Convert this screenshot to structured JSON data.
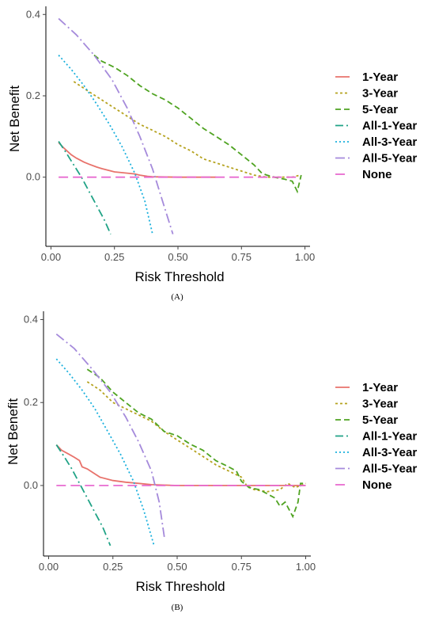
{
  "chart_data": [
    {
      "type": "line",
      "panel_label": "(A)",
      "xlabel": "Risk Threshold",
      "ylabel": "Net Benefit",
      "xlim": [
        -0.02,
        1.02
      ],
      "ylim": [
        -0.17,
        0.42
      ],
      "x_ticks": [
        0.0,
        0.25,
        0.5,
        0.75,
        1.0
      ],
      "x_tick_labels": [
        "0.00",
        "0.25",
        "0.50",
        "0.75",
        "1.00"
      ],
      "y_ticks": [
        0.0,
        0.2,
        0.4
      ],
      "y_tick_labels": [
        "0.0",
        "0.2",
        "0.4"
      ],
      "grid": false,
      "legend_position": "right",
      "series": [
        {
          "name": "1-Year",
          "color": "#E8726B",
          "dash": "solid",
          "points": [
            [
              0.03,
              0.085
            ],
            [
              0.05,
              0.072
            ],
            [
              0.08,
              0.055
            ],
            [
              0.1,
              0.047
            ],
            [
              0.13,
              0.037
            ],
            [
              0.15,
              0.032
            ],
            [
              0.18,
              0.025
            ],
            [
              0.2,
              0.021
            ],
            [
              0.25,
              0.013
            ],
            [
              0.3,
              0.01
            ],
            [
              0.33,
              0.008
            ],
            [
              0.35,
              0.005
            ],
            [
              0.38,
              0.002
            ],
            [
              0.4,
              0.001
            ],
            [
              0.5,
              0.0
            ],
            [
              0.6,
              0.0
            ],
            [
              0.65,
              0.0
            ]
          ]
        },
        {
          "name": "3-Year",
          "color": "#B5A21E",
          "dash": "dot-short",
          "points": [
            [
              0.09,
              0.235
            ],
            [
              0.15,
              0.21
            ],
            [
              0.2,
              0.19
            ],
            [
              0.25,
              0.17
            ],
            [
              0.3,
              0.15
            ],
            [
              0.35,
              0.13
            ],
            [
              0.4,
              0.115
            ],
            [
              0.45,
              0.1
            ],
            [
              0.5,
              0.08
            ],
            [
              0.55,
              0.065
            ],
            [
              0.6,
              0.045
            ],
            [
              0.65,
              0.035
            ],
            [
              0.7,
              0.025
            ],
            [
              0.75,
              0.015
            ],
            [
              0.8,
              0.005
            ],
            [
              0.85,
              0.0
            ],
            [
              0.9,
              0.0
            ],
            [
              0.95,
              0.0
            ],
            [
              0.98,
              0.005
            ]
          ]
        },
        {
          "name": "5-Year",
          "color": "#4FA321",
          "dash": "dash",
          "points": [
            [
              0.17,
              0.3
            ],
            [
              0.2,
              0.285
            ],
            [
              0.25,
              0.27
            ],
            [
              0.3,
              0.25
            ],
            [
              0.35,
              0.225
            ],
            [
              0.4,
              0.205
            ],
            [
              0.45,
              0.19
            ],
            [
              0.5,
              0.17
            ],
            [
              0.55,
              0.145
            ],
            [
              0.6,
              0.12
            ],
            [
              0.65,
              0.1
            ],
            [
              0.7,
              0.08
            ],
            [
              0.75,
              0.055
            ],
            [
              0.8,
              0.03
            ],
            [
              0.83,
              0.01
            ],
            [
              0.85,
              0.005
            ],
            [
              0.88,
              0.0
            ],
            [
              0.92,
              -0.005
            ],
            [
              0.95,
              -0.01
            ],
            [
              0.97,
              -0.035
            ],
            [
              0.985,
              0.005
            ]
          ]
        },
        {
          "name": "All-1-Year",
          "color": "#20A386",
          "dash": "dashdot",
          "points": [
            [
              0.03,
              0.088
            ],
            [
              0.06,
              0.06
            ],
            [
              0.09,
              0.03
            ],
            [
              0.12,
              0.0
            ],
            [
              0.15,
              -0.035
            ],
            [
              0.18,
              -0.07
            ],
            [
              0.21,
              -0.105
            ],
            [
              0.235,
              -0.14
            ]
          ]
        },
        {
          "name": "All-3-Year",
          "color": "#1AB0DD",
          "dash": "dot",
          "points": [
            [
              0.03,
              0.3
            ],
            [
              0.08,
              0.265
            ],
            [
              0.13,
              0.225
            ],
            [
              0.18,
              0.18
            ],
            [
              0.23,
              0.13
            ],
            [
              0.28,
              0.075
            ],
            [
              0.33,
              0.01
            ],
            [
              0.37,
              -0.06
            ],
            [
              0.4,
              -0.14
            ]
          ]
        },
        {
          "name": "All-5-Year",
          "color": "#A58ADB",
          "dash": "dashdot-long",
          "points": [
            [
              0.03,
              0.39
            ],
            [
              0.1,
              0.35
            ],
            [
              0.17,
              0.3
            ],
            [
              0.24,
              0.24
            ],
            [
              0.3,
              0.17
            ],
            [
              0.35,
              0.1
            ],
            [
              0.4,
              0.02
            ],
            [
              0.44,
              -0.06
            ],
            [
              0.48,
              -0.14
            ]
          ]
        },
        {
          "name": "None",
          "color": "#E86BD0",
          "dash": "longdash",
          "points": [
            [
              0.03,
              0.0
            ],
            [
              0.98,
              0.0
            ]
          ]
        }
      ]
    },
    {
      "type": "line",
      "panel_label": "(B)",
      "xlabel": "Risk Threshold",
      "ylabel": "Net Benefit",
      "xlim": [
        -0.02,
        1.02
      ],
      "ylim": [
        -0.17,
        0.42
      ],
      "x_ticks": [
        0.0,
        0.25,
        0.5,
        0.75,
        1.0
      ],
      "x_tick_labels": [
        "0.00",
        "0.25",
        "0.50",
        "0.75",
        "1.00"
      ],
      "y_ticks": [
        0.0,
        0.2,
        0.4
      ],
      "y_tick_labels": [
        "0.0",
        "0.2",
        "0.4"
      ],
      "grid": false,
      "legend_position": "right",
      "series": [
        {
          "name": "1-Year",
          "color": "#E8726B",
          "dash": "solid",
          "points": [
            [
              0.03,
              0.098
            ],
            [
              0.05,
              0.085
            ],
            [
              0.08,
              0.075
            ],
            [
              0.1,
              0.068
            ],
            [
              0.12,
              0.06
            ],
            [
              0.13,
              0.045
            ],
            [
              0.15,
              0.04
            ],
            [
              0.2,
              0.02
            ],
            [
              0.25,
              0.012
            ],
            [
              0.3,
              0.008
            ],
            [
              0.35,
              0.005
            ],
            [
              0.4,
              0.002
            ],
            [
              0.5,
              0.0
            ],
            [
              0.6,
              0.0
            ],
            [
              0.75,
              0.0
            ],
            [
              0.9,
              0.0
            ],
            [
              1.0,
              0.0
            ]
          ]
        },
        {
          "name": "3-Year",
          "color": "#B5A21E",
          "dash": "dot-short",
          "points": [
            [
              0.15,
              0.25
            ],
            [
              0.2,
              0.23
            ],
            [
              0.25,
              0.2
            ],
            [
              0.3,
              0.185
            ],
            [
              0.35,
              0.17
            ],
            [
              0.4,
              0.155
            ],
            [
              0.45,
              0.13
            ],
            [
              0.5,
              0.11
            ],
            [
              0.55,
              0.09
            ],
            [
              0.6,
              0.07
            ],
            [
              0.65,
              0.05
            ],
            [
              0.7,
              0.035
            ],
            [
              0.75,
              0.02
            ],
            [
              0.77,
              0.0
            ],
            [
              0.8,
              -0.01
            ],
            [
              0.85,
              -0.015
            ],
            [
              0.9,
              -0.01
            ],
            [
              0.93,
              0.005
            ],
            [
              0.96,
              -0.005
            ],
            [
              1.0,
              0.005
            ]
          ]
        },
        {
          "name": "5-Year",
          "color": "#4FA321",
          "dash": "dash",
          "points": [
            [
              0.15,
              0.28
            ],
            [
              0.2,
              0.26
            ],
            [
              0.25,
              0.225
            ],
            [
              0.3,
              0.2
            ],
            [
              0.35,
              0.175
            ],
            [
              0.4,
              0.16
            ],
            [
              0.45,
              0.13
            ],
            [
              0.5,
              0.12
            ],
            [
              0.55,
              0.1
            ],
            [
              0.6,
              0.085
            ],
            [
              0.65,
              0.06
            ],
            [
              0.7,
              0.045
            ],
            [
              0.73,
              0.035
            ],
            [
              0.75,
              0.01
            ],
            [
              0.78,
              -0.005
            ],
            [
              0.82,
              -0.01
            ],
            [
              0.85,
              -0.02
            ],
            [
              0.88,
              -0.03
            ],
            [
              0.9,
              -0.05
            ],
            [
              0.92,
              -0.04
            ],
            [
              0.95,
              -0.075
            ],
            [
              0.97,
              -0.04
            ],
            [
              0.98,
              0.005
            ],
            [
              1.0,
              0.005
            ]
          ]
        },
        {
          "name": "All-1-Year",
          "color": "#20A386",
          "dash": "dashdot",
          "points": [
            [
              0.03,
              0.098
            ],
            [
              0.06,
              0.07
            ],
            [
              0.09,
              0.04
            ],
            [
              0.12,
              0.005
            ],
            [
              0.15,
              -0.03
            ],
            [
              0.18,
              -0.065
            ],
            [
              0.21,
              -0.1
            ],
            [
              0.24,
              -0.145
            ]
          ]
        },
        {
          "name": "All-3-Year",
          "color": "#1AB0DD",
          "dash": "dot",
          "points": [
            [
              0.03,
              0.305
            ],
            [
              0.08,
              0.27
            ],
            [
              0.13,
              0.23
            ],
            [
              0.18,
              0.185
            ],
            [
              0.23,
              0.13
            ],
            [
              0.28,
              0.075
            ],
            [
              0.33,
              0.01
            ],
            [
              0.37,
              -0.06
            ],
            [
              0.41,
              -0.145
            ]
          ]
        },
        {
          "name": "All-5-Year",
          "color": "#A58ADB",
          "dash": "dashdot-long",
          "points": [
            [
              0.03,
              0.365
            ],
            [
              0.1,
              0.33
            ],
            [
              0.17,
              0.28
            ],
            [
              0.24,
              0.225
            ],
            [
              0.3,
              0.165
            ],
            [
              0.35,
              0.105
            ],
            [
              0.4,
              0.035
            ],
            [
              0.43,
              -0.04
            ],
            [
              0.45,
              -0.125
            ]
          ]
        },
        {
          "name": "None",
          "color": "#E86BD0",
          "dash": "longdash",
          "points": [
            [
              0.03,
              0.0
            ],
            [
              1.0,
              0.0
            ]
          ]
        }
      ]
    }
  ]
}
